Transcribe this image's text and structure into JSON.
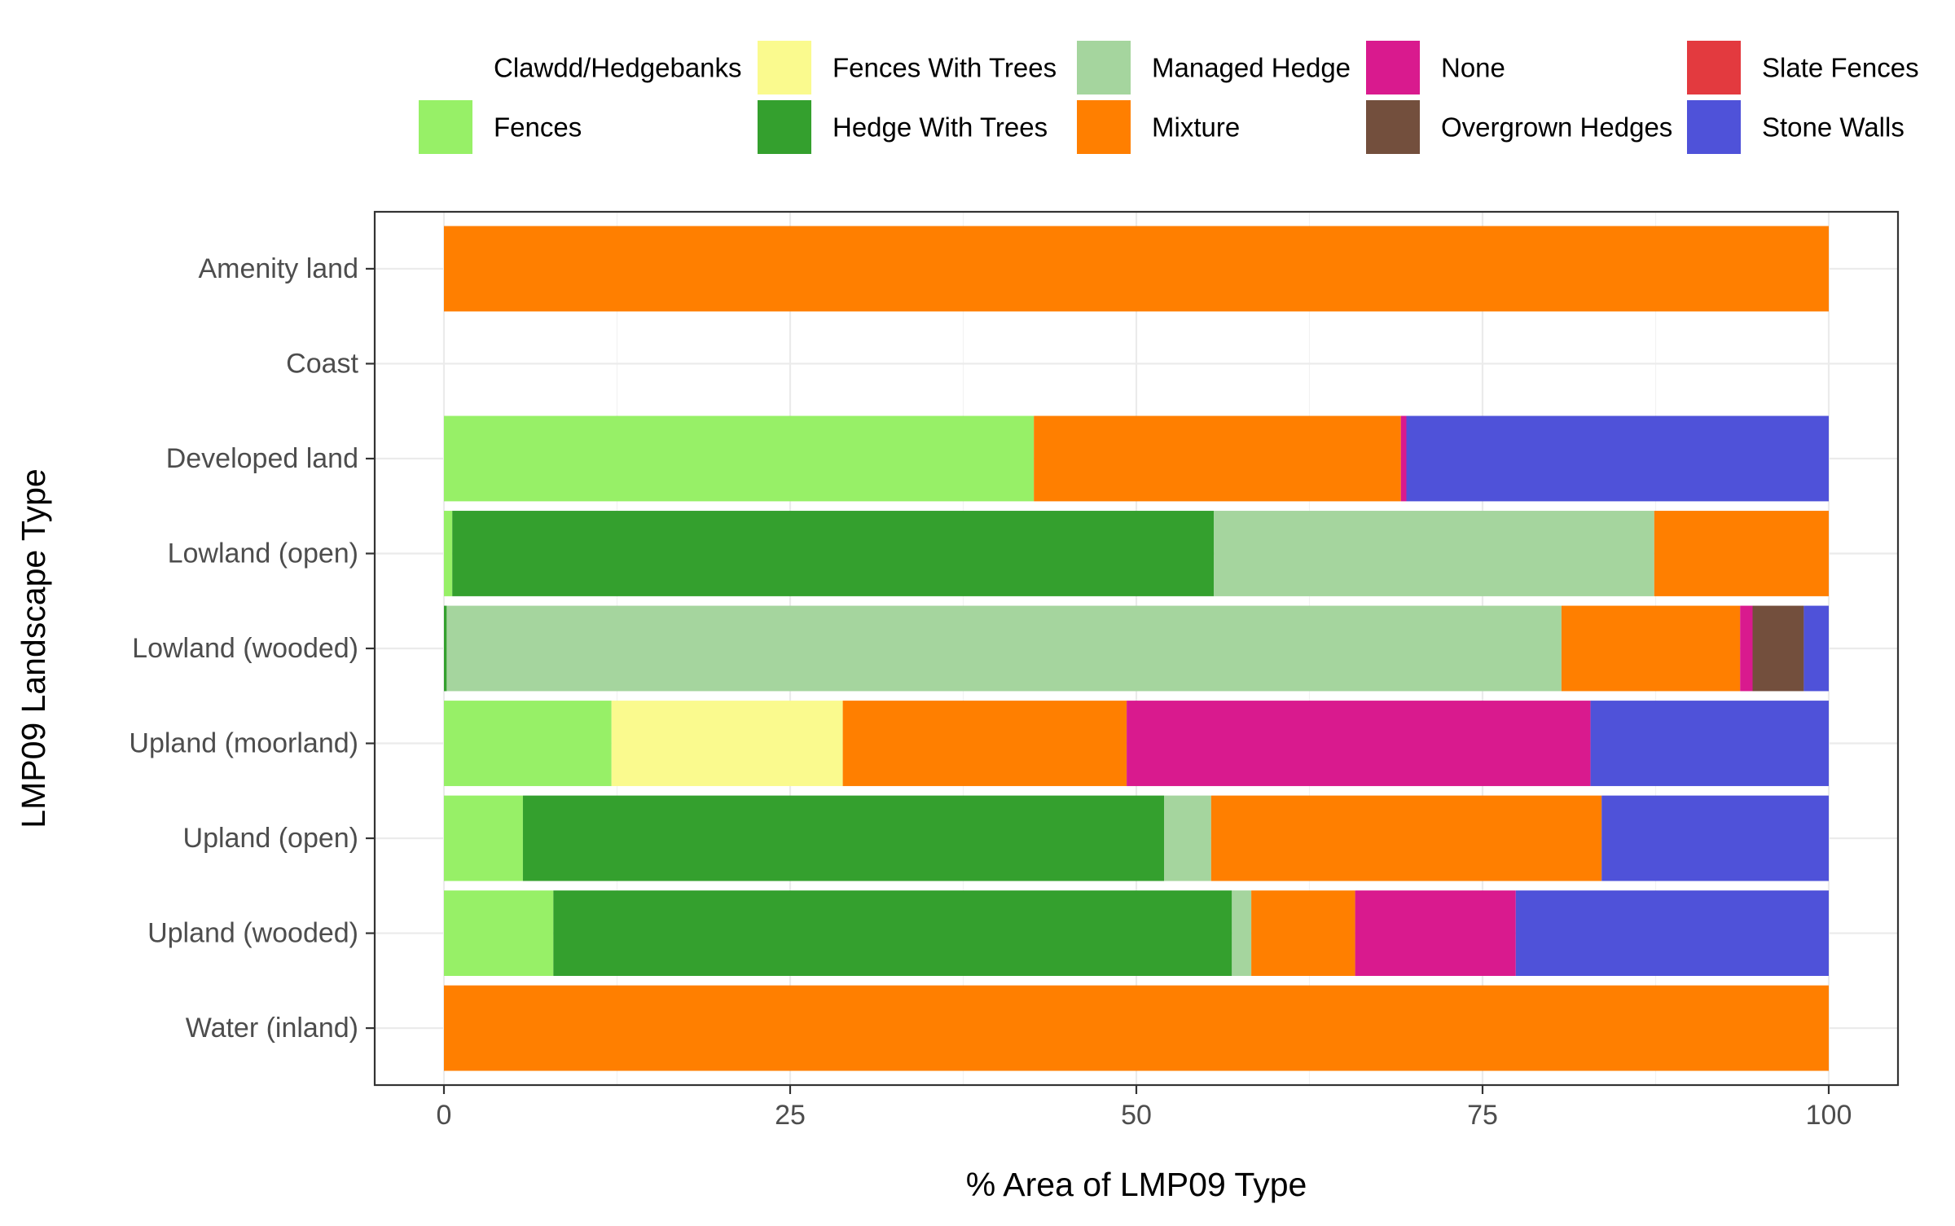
{
  "chart_data": {
    "type": "bar",
    "orientation": "horizontal",
    "stacked": true,
    "xlabel": "% Area of LMP09 Type",
    "ylabel": "LMP09 Landscape Type",
    "xlim": [
      0,
      100
    ],
    "xticks": [
      0,
      25,
      50,
      75,
      100
    ],
    "grid": true,
    "legend_position": "top",
    "categories": [
      "Amenity land",
      "Coast",
      "Developed land",
      "Lowland (open)",
      "Lowland (wooded)",
      "Upland (moorland)",
      "Upland (open)",
      "Upland (wooded)",
      "Water (inland)"
    ],
    "series": [
      {
        "name": "Clawdd/Hedgebanks",
        "color": "#FFFFFF",
        "values": [
          0,
          0,
          0,
          0,
          0,
          0,
          0,
          0,
          0
        ]
      },
      {
        "name": "Fences",
        "color": "#97F067",
        "values": [
          0,
          0,
          42.6,
          0.6,
          0,
          12.1,
          5.7,
          7.9,
          0
        ]
      },
      {
        "name": "Fences With Trees",
        "color": "#FAFA8E",
        "values": [
          0,
          0,
          0,
          0,
          0,
          16.7,
          0,
          0,
          0
        ]
      },
      {
        "name": "Hedge With Trees",
        "color": "#34A02E",
        "values": [
          0,
          0,
          0,
          55.0,
          0.2,
          0,
          46.3,
          49.0,
          0
        ]
      },
      {
        "name": "Managed Hedge",
        "color": "#A5D59E",
        "values": [
          0,
          0,
          0,
          31.8,
          80.5,
          0,
          3.4,
          1.4,
          0
        ]
      },
      {
        "name": "Mixture",
        "color": "#FF7F00",
        "values": [
          100,
          0,
          26.5,
          12.6,
          12.9,
          20.5,
          28.2,
          7.5,
          100
        ]
      },
      {
        "name": "None",
        "color": "#D91A8E",
        "values": [
          0,
          0,
          0.4,
          0,
          0.9,
          33.5,
          0,
          11.6,
          0
        ]
      },
      {
        "name": "Overgrown Hedges",
        "color": "#734F3D",
        "values": [
          0,
          0,
          0,
          0,
          3.7,
          0,
          0,
          0,
          0
        ]
      },
      {
        "name": "Slate Fences",
        "color": "#E33A3F",
        "values": [
          0,
          0,
          0,
          0,
          0,
          0,
          0,
          0,
          0
        ]
      },
      {
        "name": "Stone Walls",
        "color": "#4F52D9",
        "values": [
          0,
          0,
          30.5,
          0,
          1.8,
          17.2,
          16.4,
          22.6,
          0
        ]
      }
    ]
  }
}
